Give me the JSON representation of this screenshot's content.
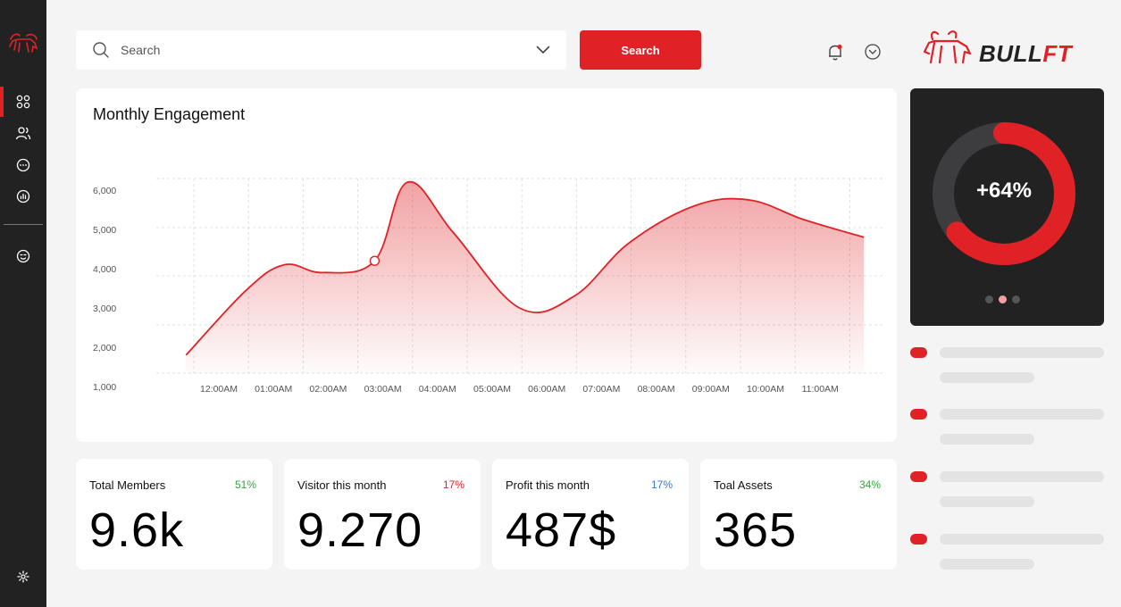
{
  "sidebar": {
    "items": [
      {
        "name": "dashboard",
        "icon": "grid-icon",
        "active": true
      },
      {
        "name": "members",
        "icon": "users-icon",
        "active": false
      },
      {
        "name": "messages",
        "icon": "chat-icon",
        "active": false
      },
      {
        "name": "analytics",
        "icon": "chart-icon",
        "active": false
      },
      {
        "name": "support",
        "icon": "smile-icon",
        "active": false
      }
    ],
    "settings_icon": "gear-icon"
  },
  "header": {
    "search_placeholder": "Search",
    "search_button": "Search",
    "brand_part1": "BULL",
    "brand_part2": "FT"
  },
  "colors": {
    "accent": "#e02227",
    "dark": "#222222",
    "green": "#2ea836",
    "blue": "#2f7bd6"
  },
  "engagement_card": {
    "title": "Monthly Engagement"
  },
  "chart_data": {
    "type": "area",
    "title": "Monthly Engagement",
    "y_ticks": [
      "6,000",
      "5,000",
      "4,000",
      "3,000",
      "2,000",
      "1,000"
    ],
    "x_ticks": [
      "12:00AM",
      "01:00AM",
      "02:00AM",
      "03:00AM",
      "04:00AM",
      "05:00AM",
      "06:00AM",
      "07:00AM",
      "08:00AM",
      "09:00AM",
      "10:00AM",
      "11:00AM"
    ],
    "ylim": [
      1000,
      6000
    ],
    "series": [
      {
        "name": "Engagement",
        "x": [
          -0.6,
          0.5,
          1.2,
          1.9,
          2.85,
          3.45,
          4.3,
          5.5,
          6.5,
          7.5,
          8.7,
          9.7,
          10.7,
          11.8
        ],
        "values": [
          1800,
          3450,
          4100,
          3900,
          4200,
          6200,
          4900,
          3000,
          3300,
          4650,
          5600,
          5750,
          5250,
          4800
        ]
      }
    ],
    "highlight_point": {
      "x": 2.85,
      "y": 4200
    },
    "grid": true
  },
  "donut": {
    "label": "+64%",
    "value": 64,
    "pages": 3,
    "active_page": 1
  },
  "stats": [
    {
      "label": "Total Members",
      "value": "9.6k",
      "pct": "51%",
      "pct_color": "#2ea836"
    },
    {
      "label": "Visitor this month",
      "value": "9.270",
      "pct": "17%",
      "pct_color": "#e02227"
    },
    {
      "label": "Profit this month",
      "value": "487$",
      "pct": "17%",
      "pct_color": "#2f7bd6"
    },
    {
      "label": "Toal Assets",
      "value": "365",
      "pct": "34%",
      "pct_color": "#2ea836"
    }
  ]
}
